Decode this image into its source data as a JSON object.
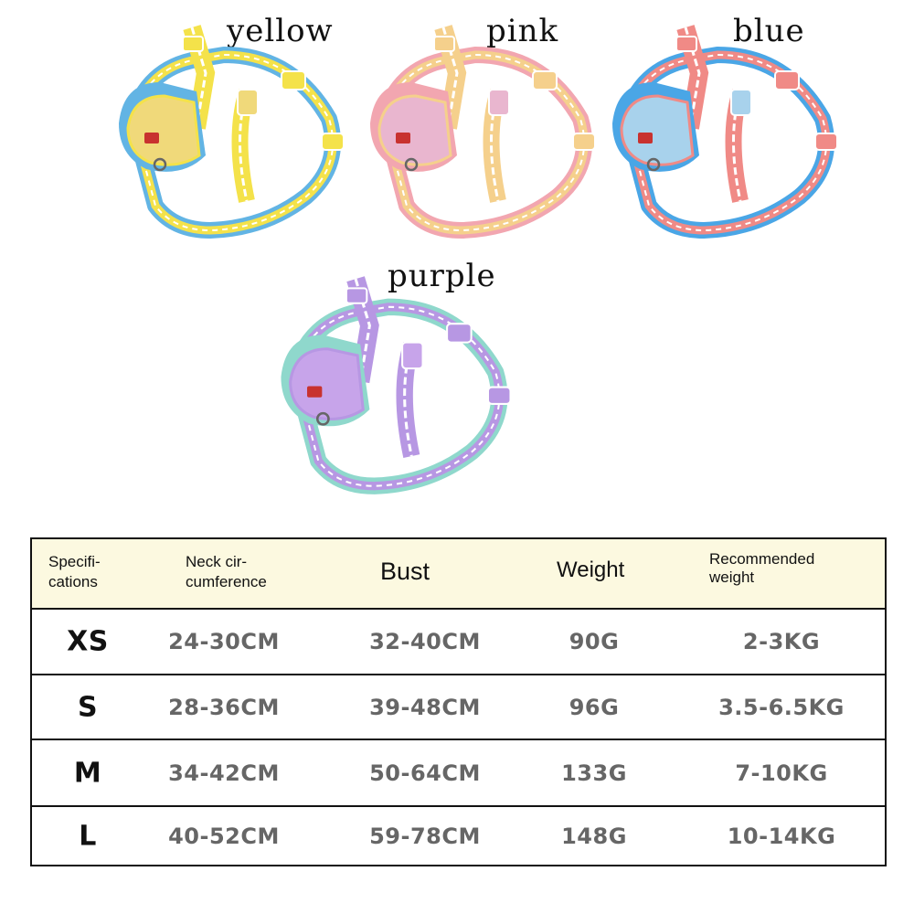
{
  "colors": {
    "yellow": {
      "name": "yellow",
      "main": "#f4e24a",
      "accent": "#62b4e4",
      "plate": "#f0d97a"
    },
    "pink": {
      "name": "pink",
      "main": "#f5d08c",
      "accent": "#f2a6b0",
      "plate": "#e9b6cf"
    },
    "blue": {
      "name": "blue",
      "main": "#f08a86",
      "accent": "#4aa6e6",
      "plate": "#a8d2ec"
    },
    "purple": {
      "name": "purple",
      "main": "#b797e3",
      "accent": "#8fd8cc",
      "plate": "#c7a4ea"
    }
  },
  "table": {
    "headers": [
      "Specifi-\ncations",
      "Neck cir-\ncumference",
      "Bust",
      "Weight",
      "Recommended\nweight"
    ],
    "rows": [
      [
        "XS",
        "24-30CM",
        "32-40CM",
        "90G",
        "2-3KG"
      ],
      [
        "S",
        "28-36CM",
        "39-48CM",
        "96G",
        "3.5-6.5KG"
      ],
      [
        "M",
        "34-42CM",
        "50-64CM",
        "133G",
        "7-10KG"
      ],
      [
        "L",
        "40-52CM",
        "59-78CM",
        "148G",
        "10-14KG"
      ]
    ]
  }
}
